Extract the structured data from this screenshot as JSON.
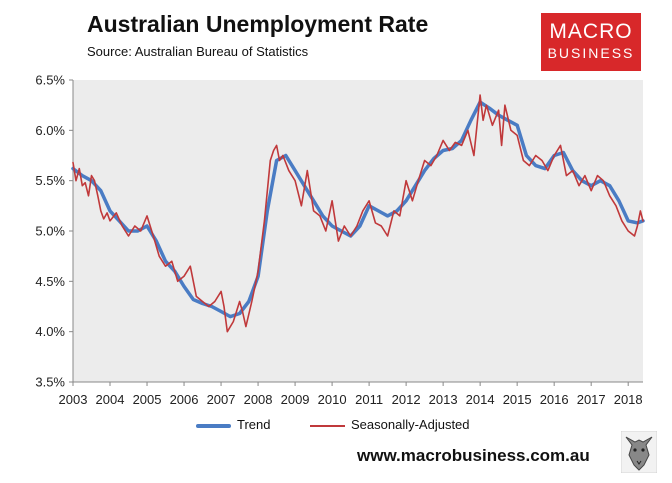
{
  "header": {
    "title": "Australian Unemployment Rate",
    "source": "Source: Australian Bureau of Statistics",
    "logo_line1": "MACRO",
    "logo_line2": "BUSINESS"
  },
  "footer": {
    "url": "www.macrobusiness.com.au",
    "wolf_icon": "wolf-logo-icon"
  },
  "colors": {
    "trend": "#4a7cc4",
    "seasonally_adjusted": "#c0393b",
    "plot_bg": "#ececec",
    "brand": "#d8282a"
  },
  "chart_data": {
    "type": "line",
    "title": "Australian Unemployment Rate",
    "xlabel": "",
    "ylabel": "",
    "xlim": [
      2003,
      2018.4
    ],
    "ylim": [
      3.5,
      6.5
    ],
    "y_ticks": [
      3.5,
      4.0,
      4.5,
      5.0,
      5.5,
      6.0,
      6.5
    ],
    "y_tick_labels": [
      "3.5%",
      "4.0%",
      "4.5%",
      "5.0%",
      "5.5%",
      "6.0%",
      "6.5%"
    ],
    "x_ticks": [
      2003,
      2004,
      2005,
      2006,
      2007,
      2008,
      2009,
      2010,
      2011,
      2012,
      2013,
      2014,
      2015,
      2016,
      2017,
      2018
    ],
    "x_tick_labels": [
      "2003",
      "2004",
      "2005",
      "2006",
      "2007",
      "2008",
      "2009",
      "2010",
      "2011",
      "2012",
      "2013",
      "2014",
      "2015",
      "2016",
      "2017",
      "2018"
    ],
    "grid": false,
    "legend": "bottom",
    "series": [
      {
        "name": "Trend",
        "x": [
          2003.0,
          2003.25,
          2003.5,
          2003.75,
          2004.0,
          2004.25,
          2004.5,
          2004.75,
          2005.0,
          2005.25,
          2005.5,
          2005.75,
          2006.0,
          2006.25,
          2006.5,
          2006.75,
          2007.0,
          2007.25,
          2007.5,
          2007.75,
          2008.0,
          2008.25,
          2008.5,
          2008.75,
          2009.0,
          2009.25,
          2009.5,
          2009.75,
          2010.0,
          2010.25,
          2010.5,
          2010.75,
          2011.0,
          2011.25,
          2011.5,
          2011.75,
          2012.0,
          2012.25,
          2012.5,
          2012.75,
          2013.0,
          2013.25,
          2013.5,
          2013.75,
          2014.0,
          2014.25,
          2014.5,
          2014.75,
          2015.0,
          2015.25,
          2015.5,
          2015.75,
          2016.0,
          2016.25,
          2016.5,
          2016.75,
          2017.0,
          2017.25,
          2017.5,
          2017.75,
          2018.0,
          2018.25,
          2018.4
        ],
        "values": [
          5.62,
          5.55,
          5.5,
          5.4,
          5.2,
          5.1,
          5.0,
          5.0,
          5.05,
          4.9,
          4.7,
          4.6,
          4.45,
          4.32,
          4.28,
          4.25,
          4.2,
          4.15,
          4.18,
          4.3,
          4.55,
          5.2,
          5.7,
          5.75,
          5.6,
          5.45,
          5.3,
          5.15,
          5.05,
          5.0,
          4.95,
          5.05,
          5.25,
          5.2,
          5.15,
          5.2,
          5.3,
          5.45,
          5.6,
          5.72,
          5.8,
          5.82,
          5.9,
          6.1,
          6.28,
          6.22,
          6.15,
          6.1,
          6.05,
          5.75,
          5.65,
          5.62,
          5.75,
          5.78,
          5.6,
          5.5,
          5.45,
          5.5,
          5.45,
          5.3,
          5.1,
          5.08,
          5.1
        ]
      },
      {
        "name": "Seasonally-Adjusted",
        "x": [
          2003.0,
          2003.08,
          2003.17,
          2003.25,
          2003.33,
          2003.42,
          2003.5,
          2003.58,
          2003.67,
          2003.75,
          2003.83,
          2003.92,
          2004.0,
          2004.17,
          2004.33,
          2004.5,
          2004.67,
          2004.83,
          2005.0,
          2005.17,
          2005.33,
          2005.5,
          2005.67,
          2005.83,
          2006.0,
          2006.17,
          2006.33,
          2006.5,
          2006.67,
          2006.83,
          2007.0,
          2007.08,
          2007.17,
          2007.33,
          2007.5,
          2007.58,
          2007.67,
          2007.83,
          2008.0,
          2008.17,
          2008.33,
          2008.42,
          2008.5,
          2008.58,
          2008.67,
          2008.83,
          2009.0,
          2009.17,
          2009.33,
          2009.5,
          2009.67,
          2009.83,
          2010.0,
          2010.17,
          2010.33,
          2010.5,
          2010.67,
          2010.83,
          2011.0,
          2011.17,
          2011.33,
          2011.5,
          2011.67,
          2011.83,
          2012.0,
          2012.17,
          2012.33,
          2012.5,
          2012.67,
          2012.83,
          2013.0,
          2013.17,
          2013.33,
          2013.5,
          2013.67,
          2013.83,
          2014.0,
          2014.08,
          2014.17,
          2014.33,
          2014.5,
          2014.58,
          2014.67,
          2014.83,
          2015.0,
          2015.17,
          2015.33,
          2015.5,
          2015.67,
          2015.83,
          2016.0,
          2016.17,
          2016.33,
          2016.5,
          2016.67,
          2016.83,
          2017.0,
          2017.17,
          2017.33,
          2017.5,
          2017.67,
          2017.83,
          2018.0,
          2018.17,
          2018.25,
          2018.33,
          2018.4
        ],
        "values": [
          5.68,
          5.5,
          5.62,
          5.45,
          5.48,
          5.35,
          5.55,
          5.5,
          5.35,
          5.2,
          5.12,
          5.18,
          5.1,
          5.18,
          5.05,
          4.95,
          5.05,
          5.0,
          5.15,
          4.95,
          4.75,
          4.65,
          4.7,
          4.5,
          4.55,
          4.65,
          4.35,
          4.3,
          4.25,
          4.3,
          4.4,
          4.25,
          4.0,
          4.1,
          4.3,
          4.2,
          4.05,
          4.3,
          4.6,
          5.1,
          5.7,
          5.8,
          5.85,
          5.7,
          5.75,
          5.6,
          5.5,
          5.25,
          5.6,
          5.2,
          5.15,
          5.0,
          5.3,
          4.9,
          5.05,
          4.95,
          5.05,
          5.2,
          5.3,
          5.08,
          5.05,
          4.95,
          5.2,
          5.15,
          5.5,
          5.3,
          5.5,
          5.7,
          5.65,
          5.75,
          5.9,
          5.8,
          5.88,
          5.85,
          6.0,
          5.75,
          6.35,
          6.1,
          6.25,
          6.05,
          6.2,
          5.85,
          6.25,
          6.0,
          5.95,
          5.7,
          5.65,
          5.75,
          5.7,
          5.6,
          5.75,
          5.85,
          5.55,
          5.6,
          5.45,
          5.55,
          5.4,
          5.55,
          5.5,
          5.35,
          5.25,
          5.1,
          5.0,
          4.95,
          5.05,
          5.2,
          5.1
        ]
      }
    ]
  }
}
